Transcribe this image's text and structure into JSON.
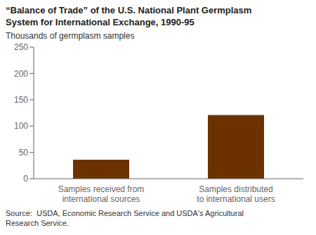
{
  "chart_data": {
    "type": "bar",
    "title": "“Balance of Trade” of the U.S. National Plant Germplasm\nSystem for International Exchange, 1990-95",
    "ylabel": "Thousands of germplasm samples",
    "categories": [
      "Samples received from\ninternational sources",
      "Samples distributed\nto international users"
    ],
    "values": [
      36,
      121
    ],
    "color": "#6B3200",
    "ylim": [
      0,
      250
    ],
    "yticks": [
      0,
      50,
      100,
      150,
      200,
      250
    ],
    "grid": false,
    "source": "Source:  USDA, Economic Research Service and USDA's Agricultural\nResearch Service."
  }
}
